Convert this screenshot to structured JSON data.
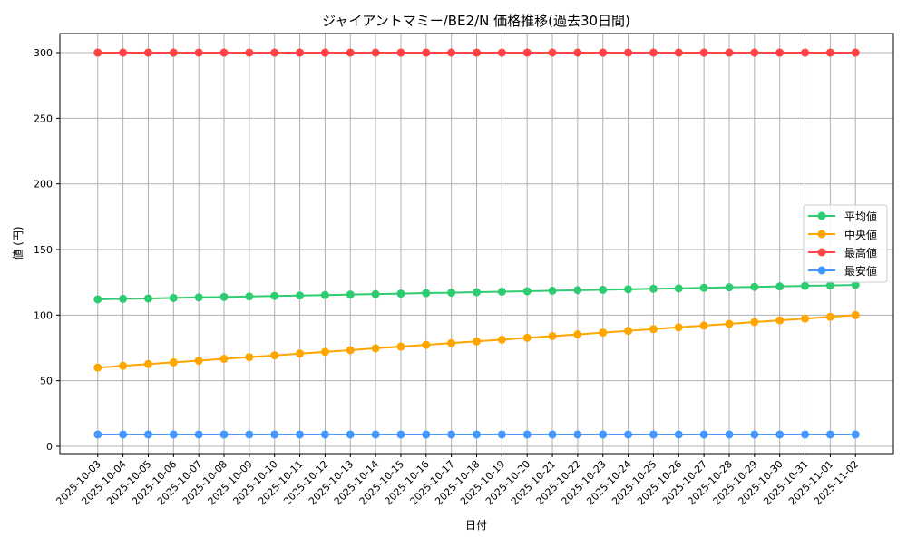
{
  "chart_data": {
    "type": "line",
    "title": "ジャイアントマミー/BE2/N 価格推移(過去30日間)",
    "xlabel": "日付",
    "ylabel": "値 (円)",
    "ylim": [
      -5.55,
      314.55
    ],
    "yticks": [
      0,
      50,
      100,
      150,
      200,
      250,
      300
    ],
    "grid": true,
    "legend_position": "right",
    "x": [
      "2025-10-03",
      "2025-10-04",
      "2025-10-05",
      "2025-10-06",
      "2025-10-07",
      "2025-10-08",
      "2025-10-09",
      "2025-10-10",
      "2025-10-11",
      "2025-10-12",
      "2025-10-13",
      "2025-10-14",
      "2025-10-15",
      "2025-10-16",
      "2025-10-17",
      "2025-10-18",
      "2025-10-19",
      "2025-10-20",
      "2025-10-21",
      "2025-10-22",
      "2025-10-23",
      "2025-10-24",
      "2025-10-25",
      "2025-10-26",
      "2025-10-27",
      "2025-10-28",
      "2025-10-29",
      "2025-10-30",
      "2025-10-31",
      "2025-11-01",
      "2025-11-02"
    ],
    "series": [
      {
        "name": "平均値",
        "color": "#2ecc71",
        "values": [
          112,
          112.4,
          112.7,
          113.1,
          113.5,
          113.8,
          114.2,
          114.6,
          114.9,
          115.3,
          115.7,
          116,
          116.4,
          116.8,
          117.1,
          117.5,
          117.9,
          118.2,
          118.6,
          119,
          119.3,
          119.7,
          120.1,
          120.4,
          120.8,
          121.2,
          121.5,
          121.9,
          122.3,
          122.6,
          123
        ]
      },
      {
        "name": "中央値",
        "color": "#ffa500",
        "values": [
          60,
          61.3,
          62.7,
          64,
          65.3,
          66.7,
          68,
          69.3,
          70.7,
          72,
          73.3,
          74.7,
          76,
          77.3,
          78.7,
          80,
          81.3,
          82.7,
          84,
          85.3,
          86.7,
          88,
          89.3,
          90.7,
          92,
          93.3,
          94.7,
          96,
          97.3,
          98.7,
          100
        ]
      },
      {
        "name": "最高値",
        "color": "#ff4444",
        "values": [
          300,
          300,
          300,
          300,
          300,
          300,
          300,
          300,
          300,
          300,
          300,
          300,
          300,
          300,
          300,
          300,
          300,
          300,
          300,
          300,
          300,
          300,
          300,
          300,
          300,
          300,
          300,
          300,
          300,
          300,
          300
        ]
      },
      {
        "name": "最安値",
        "color": "#4499ff",
        "values": [
          9,
          9,
          9,
          9,
          9,
          9,
          9,
          9,
          9,
          9,
          9,
          9,
          9,
          9,
          9,
          9,
          9,
          9,
          9,
          9,
          9,
          9,
          9,
          9,
          9,
          9,
          9,
          9,
          9,
          9,
          9
        ]
      }
    ]
  }
}
